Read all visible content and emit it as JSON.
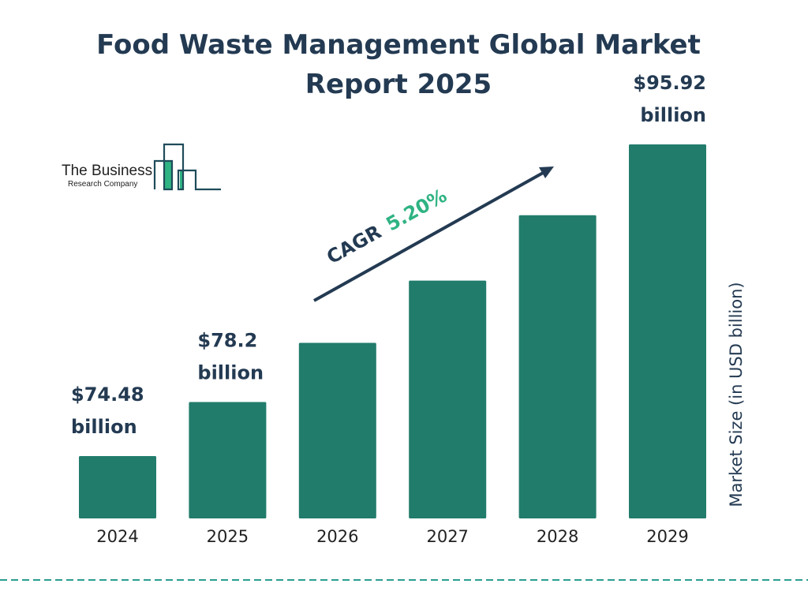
{
  "chart_data": {
    "type": "bar",
    "title_lines": [
      "Food Waste Management Global Market",
      "Report 2025"
    ],
    "categories": [
      "2024",
      "2025",
      "2026",
      "2027",
      "2028",
      "2029"
    ],
    "values": [
      74.48,
      78.2,
      82.27,
      86.55,
      91.05,
      95.92
    ],
    "data_labels": [
      {
        "index": 0,
        "lines": [
          "$74.48",
          "billion"
        ]
      },
      {
        "index": 1,
        "lines": [
          "$78.2",
          "billion"
        ]
      },
      {
        "index": 5,
        "lines": [
          "$95.92",
          "billion"
        ]
      }
    ],
    "xlabel": "",
    "ylabel": "Market Size (in USD billion)",
    "ylim": [
      70.19,
      96
    ],
    "grid": false,
    "annotation": {
      "prefix": "CAGR",
      "value": "5.20%"
    },
    "colors": {
      "bar": "#217c6b",
      "text": "#233a52",
      "accent": "#2fb383",
      "divider": "#2a9d8f"
    }
  },
  "logo": {
    "line1": "The Business",
    "line2": "Research Company"
  }
}
